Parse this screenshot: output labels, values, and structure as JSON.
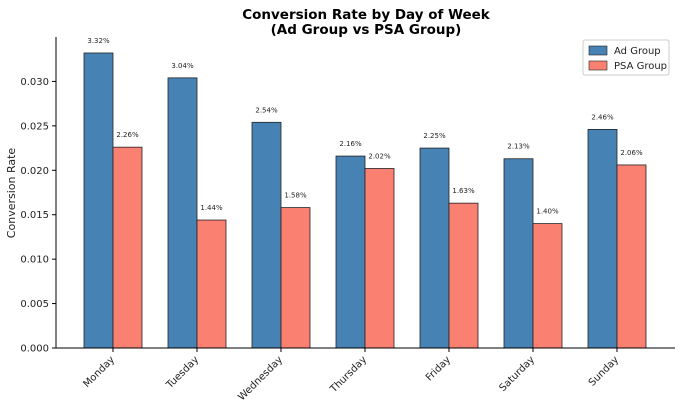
{
  "chart_data": {
    "type": "bar",
    "title": "Conversion Rate by Day of Week",
    "subtitle": "(Ad Group vs PSA Group)",
    "xlabel": "",
    "ylabel": "Conversion Rate",
    "ylim": [
      0,
      0.035
    ],
    "yticks": [
      "0.000",
      "0.005",
      "0.010",
      "0.015",
      "0.020",
      "0.025",
      "0.030"
    ],
    "categories": [
      "Monday",
      "Tuesday",
      "Wednesday",
      "Thursday",
      "Friday",
      "Saturday",
      "Sunday"
    ],
    "series": [
      {
        "name": "Ad Group",
        "color": "#4682b4",
        "values": [
          0.0332,
          0.0304,
          0.0254,
          0.0216,
          0.0225,
          0.0213,
          0.0246
        ],
        "labels": [
          "3.32%",
          "3.04%",
          "2.54%",
          "2.16%",
          "2.25%",
          "2.13%",
          "2.46%"
        ]
      },
      {
        "name": "PSA Group",
        "color": "#fa8072",
        "values": [
          0.0226,
          0.0144,
          0.0158,
          0.0202,
          0.0163,
          0.014,
          0.0206
        ],
        "labels": [
          "2.26%",
          "1.44%",
          "1.58%",
          "2.02%",
          "1.63%",
          "1.40%",
          "2.06%"
        ]
      }
    ],
    "legend_position": "top-right",
    "grid": false
  }
}
